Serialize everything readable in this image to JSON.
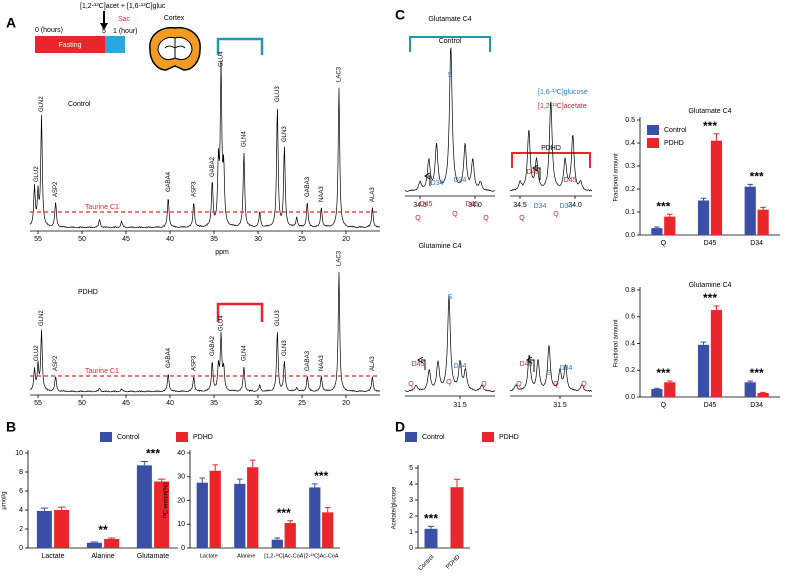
{
  "panel_labels": [
    "A",
    "B",
    "C",
    "D"
  ],
  "panel_a": {
    "timeline": {
      "injection": "[1,2-¹³C]acet + [1,6-¹³C]gluc",
      "start": "0 (hours)",
      "inject_time": "5",
      "end": "1 (hour)",
      "fasting": "Fasting",
      "sac": "Sac"
    },
    "region": "Cortex",
    "spectra": [
      {
        "title": "Control",
        "reference": "Taurine C1",
        "peak_labels": [
          "GLU2",
          "GLN2",
          "ASP2",
          "GABA4",
          "ASP3",
          "GABA2",
          "GLU4",
          "GLN4",
          "GLU3",
          "GLN3",
          "GABA3",
          "NAA3",
          "LAC3",
          "ALA3"
        ]
      },
      {
        "title": "PDHD",
        "reference": "Taurine C1",
        "peak_labels": [
          "GLU2",
          "GLN2",
          "ASP2",
          "GABA4",
          "ASP3",
          "GABA2",
          "GLU4",
          "GLN4",
          "GLU3",
          "GLN3",
          "GABA3",
          "NAA3",
          "LAC3",
          "ALA3"
        ]
      }
    ],
    "ppm_ticks": [
      55,
      50,
      45,
      40,
      35,
      30,
      25,
      20
    ],
    "ppm_label": "ppm"
  },
  "panel_c": {
    "glutamate_title": "Glutamate C4",
    "glutamine_title": "Glutamine C4",
    "control": "Control",
    "pdhd": "PDHD",
    "glucose": "[1,6-¹³C]glucose",
    "acetate": "[1,2-¹³C]acetate",
    "spectra": [
      {
        "ticks": [
          34.5,
          {
            "value": 34,
            "label": "34.0"
          }
        ],
        "peak_labels": [
          "S",
          "D34",
          "D34",
          "D45",
          "D45",
          "Q",
          "Q",
          "Q"
        ]
      },
      {
        "ticks": [
          34.5,
          {
            "value": 34,
            "label": "34.0"
          }
        ],
        "peak_labels": [
          "D45",
          "D34",
          "D34",
          "D45",
          "Q",
          "Q"
        ]
      },
      {
        "ticks": [
          31.5
        ],
        "peak_labels": [
          "S",
          "D45",
          "D34",
          "Q",
          "Q",
          "Q"
        ]
      },
      {
        "ticks": [
          31.5
        ],
        "peak_labels": [
          "D45",
          "S",
          "D34",
          "Q",
          "Q",
          "Q"
        ]
      }
    ]
  },
  "chart_data": [
    {
      "type": "bar",
      "y_label": "µmol/g",
      "categories": [
        "Lactate",
        "Alanine",
        "Glutamate"
      ],
      "series": [
        {
          "name": "Control",
          "color": "#3a4fa8",
          "values": [
            3.9,
            0.55,
            8.7
          ],
          "errors": [
            0.3,
            0.08,
            0.4
          ]
        },
        {
          "name": "PDHD",
          "color": "#e8262b",
          "values": [
            4.0,
            0.95,
            7.0
          ],
          "errors": [
            0.3,
            0.1,
            0.25
          ]
        }
      ],
      "annotations": [
        null,
        "**",
        "***"
      ],
      "ylim": [
        0,
        10
      ],
      "yticks": [
        0,
        2,
        4,
        6,
        8,
        10
      ],
      "legend": true
    },
    {
      "type": "bar",
      "y_label": "¹³C enrich(%)",
      "categories": [
        "Lactate",
        "Alanine",
        "[1,2-¹³C]Ac-CoA",
        "[2-¹³C]Ac-CoA"
      ],
      "series": [
        {
          "name": "Control",
          "color": "#3a4fa8",
          "values": [
            27.5,
            27,
            3.5,
            25.5
          ],
          "errors": [
            2,
            2,
            0.7,
            1.5
          ]
        },
        {
          "name": "PDHD",
          "color": "#e8262b",
          "values": [
            32.5,
            34,
            10.5,
            15
          ],
          "errors": [
            2.5,
            3,
            1,
            2
          ]
        }
      ],
      "annotations": [
        null,
        null,
        "***",
        "***"
      ],
      "ylim": [
        0,
        40
      ],
      "yticks": [
        0,
        10,
        20,
        30,
        40
      ],
      "legend": false
    },
    {
      "type": "bar",
      "title": "Glutamate C4",
      "y_label": "Fractional amount",
      "categories": [
        "Q",
        "D45",
        "D34"
      ],
      "series": [
        {
          "name": "Control",
          "color": "#3a4fa8",
          "values": [
            0.03,
            0.15,
            0.21
          ],
          "errors": [
            0.005,
            0.01,
            0.01
          ]
        },
        {
          "name": "PDHD",
          "color": "#e8262b",
          "values": [
            0.08,
            0.41,
            0.11
          ],
          "errors": [
            0.01,
            0.03,
            0.01
          ]
        }
      ],
      "annotations": [
        "***",
        "***",
        "***"
      ],
      "ylim": [
        0,
        0.5
      ],
      "yticks": [
        {
          "value": 0,
          "label": "0.0"
        },
        0.1,
        0.2,
        0.3,
        0.4,
        0.5
      ],
      "legend": true
    },
    {
      "type": "bar",
      "title": "Glutamine C4",
      "y_label": "Fractional amount",
      "categories": [
        "Q",
        "D45",
        "D34"
      ],
      "series": [
        {
          "name": "Control",
          "color": "#3a4fa8",
          "values": [
            0.06,
            0.39,
            0.11
          ],
          "errors": [
            0.005,
            0.02,
            0.01
          ]
        },
        {
          "name": "PDHD",
          "color": "#e8262b",
          "values": [
            0.11,
            0.65,
            0.03
          ],
          "errors": [
            0.01,
            0.03,
            0.005
          ]
        }
      ],
      "annotations": [
        "***",
        "***",
        "***"
      ],
      "ylim": [
        0,
        0.8
      ],
      "yticks": [
        {
          "value": 0,
          "label": "0.0"
        },
        0.2,
        0.4,
        0.6,
        0.8
      ],
      "legend": false
    },
    {
      "type": "bar",
      "y_label": "Acetate/glucose",
      "categories": [
        "Control",
        "PDHD"
      ],
      "series": [
        {
          "name": "Control",
          "color": "#3a4fa8",
          "values": [
            1.2,
            null
          ],
          "errors": [
            0.15,
            null
          ]
        },
        {
          "name": "PDHD",
          "color": "#e8262b",
          "values": [
            null,
            3.8
          ],
          "errors": [
            null,
            0.5
          ]
        }
      ],
      "annotations": [
        "***",
        null
      ],
      "ylim": [
        0,
        5
      ],
      "yticks": [
        0,
        1,
        2,
        3,
        4,
        5
      ],
      "legend": true
    }
  ]
}
